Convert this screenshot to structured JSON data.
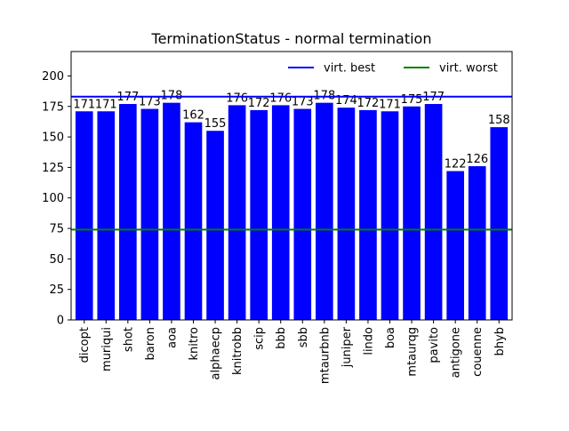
{
  "chart_data": {
    "type": "bar",
    "title": "TerminationStatus - normal termination",
    "xlabel": "",
    "ylabel": "",
    "ylim": [
      0,
      220
    ],
    "yticks": [
      0,
      25,
      50,
      75,
      100,
      125,
      150,
      175,
      200
    ],
    "categories": [
      "dicopt",
      "muriqui",
      "shot",
      "baron",
      "aoa",
      "knitro",
      "alphaecp",
      "knitrobb",
      "scip",
      "bbb",
      "sbb",
      "mtaurbnb",
      "juniper",
      "lindo",
      "boa",
      "mtaurqg",
      "pavito",
      "antigone",
      "couenne",
      "bhyb"
    ],
    "values": [
      171,
      171,
      177,
      173,
      178,
      162,
      155,
      176,
      172,
      176,
      173,
      178,
      174,
      172,
      171,
      175,
      177,
      122,
      126,
      158
    ],
    "bar_color": "#0000ff",
    "reference_lines": [
      {
        "name": "virt. best",
        "value": 183,
        "color": "#0000ff"
      },
      {
        "name": "virt. worst",
        "value": 74,
        "color": "#008000"
      }
    ],
    "legend_position": "top-right",
    "grid": false
  }
}
